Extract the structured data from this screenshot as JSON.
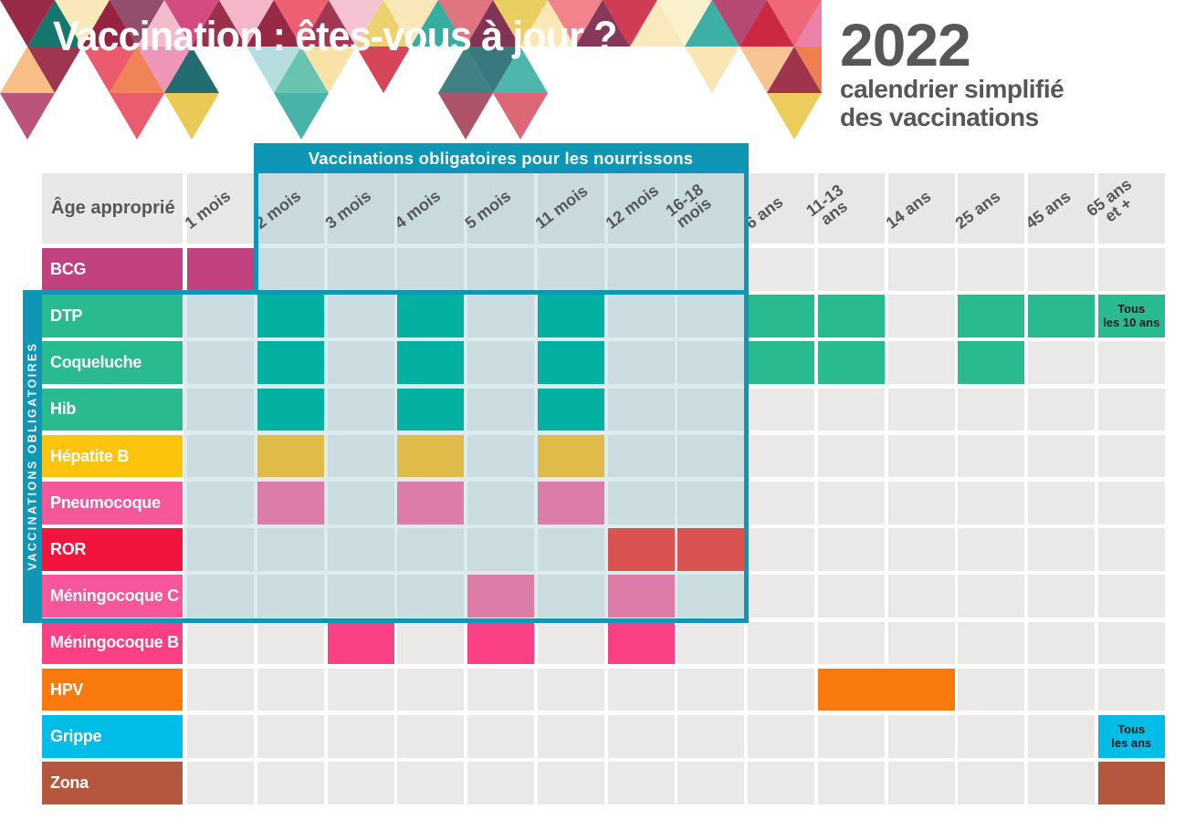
{
  "header": {
    "title": "Vaccination : êtes-vous à jour ?",
    "year": "2022",
    "subtitle_line1": "calendrier simplifié",
    "subtitle_line2": "des vaccinations"
  },
  "mosaic": {
    "palette": [
      "#e8384f",
      "#c9243f",
      "#94203d",
      "#d64456",
      "#f0626e",
      "#d2457c",
      "#ec7fa8",
      "#f3b2c5",
      "#b03b68",
      "#7d2c50",
      "#ef7b4d",
      "#f0925c",
      "#f6b97e",
      "#f9e2a8",
      "#fbeec4",
      "#2aa79b",
      "#13756d",
      "#0b5c63",
      "#66c3ae",
      "#b7e0d1",
      "#e8c547",
      "#9fd4d6"
    ]
  },
  "table": {
    "banner_label": "Vaccinations obligatoires pour les nourrissons",
    "sidebar_label": "VACCINATIONS OBLIGATOIRES",
    "corner_label": "Âge approprié",
    "columns": [
      "1 mois",
      "2 mois",
      "3 mois",
      "4 mois",
      "5 mois",
      "11 mois",
      "12 mois",
      "16-18\nmois",
      "6 ans",
      "11-13\nans",
      "14 ans",
      "25 ans",
      "45 ans",
      "65 ans\net +"
    ],
    "colors": {
      "box_teal": "#0e96b4",
      "cell_gray": "#eae9e7",
      "cell_tinted": "#cbdce1",
      "header_gray": "#e8e7e5",
      "header_tinted": "#c8dade",
      "gap_tint": "#dcebee",
      "fill_green": "#2aba8f",
      "fill_teal_in_box": "#04b0a2",
      "fill_gold_in_box": "#dfbb4a",
      "fill_pink_in_box": "#dc7ca9",
      "fill_red_in_box": "#db5350"
    },
    "box_rows_first": 1,
    "box_rows_last": 7,
    "box_cols_first": 1,
    "box_cols_last": 7,
    "rows": [
      {
        "label": "BCG",
        "label_color": "#c2417f",
        "cells": [
          {
            "col": 0,
            "color": "#c2417f"
          }
        ]
      },
      {
        "label": "DTP",
        "label_color": "#2aba8f",
        "cells": [
          {
            "col": 1,
            "color": "#04b0a2"
          },
          {
            "col": 3,
            "color": "#04b0a2"
          },
          {
            "col": 5,
            "color": "#04b0a2"
          },
          {
            "col": 8,
            "color": "#2aba8f"
          },
          {
            "col": 9,
            "color": "#2aba8f"
          },
          {
            "col": 11,
            "color": "#2aba8f"
          },
          {
            "col": 12,
            "color": "#2aba8f"
          },
          {
            "col": 13,
            "color": "#2aba8f",
            "note": "Tous\nles 10 ans"
          }
        ]
      },
      {
        "label": "Coqueluche",
        "label_color": "#2aba8f",
        "cells": [
          {
            "col": 1,
            "color": "#04b0a2"
          },
          {
            "col": 3,
            "color": "#04b0a2"
          },
          {
            "col": 5,
            "color": "#04b0a2"
          },
          {
            "col": 8,
            "color": "#2aba8f"
          },
          {
            "col": 9,
            "color": "#2aba8f"
          },
          {
            "col": 11,
            "color": "#2aba8f"
          }
        ]
      },
      {
        "label": "Hib",
        "label_color": "#2aba8f",
        "cells": [
          {
            "col": 1,
            "color": "#04b0a2"
          },
          {
            "col": 3,
            "color": "#04b0a2"
          },
          {
            "col": 5,
            "color": "#04b0a2"
          }
        ]
      },
      {
        "label": "Hépatite B",
        "label_color": "#fcc40c",
        "cells": [
          {
            "col": 1,
            "color": "#dfbb4a"
          },
          {
            "col": 3,
            "color": "#dfbb4a"
          },
          {
            "col": 5,
            "color": "#dfbb4a"
          }
        ]
      },
      {
        "label": "Pneumocoque",
        "label_color": "#f8569b",
        "cells": [
          {
            "col": 1,
            "color": "#dc7ca9"
          },
          {
            "col": 3,
            "color": "#dc7ca9"
          },
          {
            "col": 5,
            "color": "#dc7ca9"
          }
        ]
      },
      {
        "label": "ROR",
        "label_color": "#f2143c",
        "cells": [
          {
            "col": 6,
            "color": "#db5350"
          },
          {
            "col": 7,
            "color": "#db5350"
          }
        ]
      },
      {
        "label": "Méningocoque C",
        "label_color": "#f8569b",
        "cells": [
          {
            "col": 4,
            "color": "#dc7ca9"
          },
          {
            "col": 6,
            "color": "#dc7ca9"
          }
        ]
      },
      {
        "label": "Méningocoque B",
        "label_color": "#fc4086",
        "cells": [
          {
            "col": 2,
            "color": "#fc4086"
          },
          {
            "col": 4,
            "color": "#fc4086"
          },
          {
            "col": 6,
            "color": "#fc4086"
          }
        ]
      },
      {
        "label": "HPV",
        "label_color": "#fa7a0e",
        "cells": [
          {
            "col": 9,
            "colspan": 2,
            "color": "#fa7a0e"
          }
        ]
      },
      {
        "label": "Grippe",
        "label_color": "#00bde8",
        "cells": [
          {
            "col": 13,
            "color": "#00bde8",
            "note": "Tous\nles ans"
          }
        ]
      },
      {
        "label": "Zona",
        "label_color": "#b4573e",
        "cells": [
          {
            "col": 13,
            "color": "#b4573e"
          }
        ]
      }
    ]
  },
  "chart_data": {
    "type": "table",
    "title": "Vaccination : êtes-vous à jour ? — 2022 calendrier simplifié des vaccinations",
    "columns": [
      "1 mois",
      "2 mois",
      "3 mois",
      "4 mois",
      "5 mois",
      "11 mois",
      "12 mois",
      "16-18 mois",
      "6 ans",
      "11-13 ans",
      "14 ans",
      "25 ans",
      "45 ans",
      "65 ans et +"
    ],
    "rows": [
      {
        "vaccine": "BCG",
        "doses": [
          "1 mois"
        ],
        "dans_bande_obligatoire": false
      },
      {
        "vaccine": "DTP",
        "doses": [
          "2 mois",
          "4 mois",
          "11 mois",
          "6 ans",
          "11-13 ans",
          "25 ans",
          "45 ans",
          "65 ans et +"
        ],
        "note_65_ans": "Tous les 10 ans",
        "dans_bande_obligatoire": true
      },
      {
        "vaccine": "Coqueluche",
        "doses": [
          "2 mois",
          "4 mois",
          "11 mois",
          "6 ans",
          "11-13 ans",
          "25 ans"
        ],
        "dans_bande_obligatoire": true
      },
      {
        "vaccine": "Hib",
        "doses": [
          "2 mois",
          "4 mois",
          "11 mois"
        ],
        "dans_bande_obligatoire": true
      },
      {
        "vaccine": "Hépatite B",
        "doses": [
          "2 mois",
          "4 mois",
          "11 mois"
        ],
        "dans_bande_obligatoire": true
      },
      {
        "vaccine": "Pneumocoque",
        "doses": [
          "2 mois",
          "4 mois",
          "11 mois"
        ],
        "dans_bande_obligatoire": true
      },
      {
        "vaccine": "ROR",
        "doses": [
          "12 mois",
          "16-18 mois"
        ],
        "dans_bande_obligatoire": true
      },
      {
        "vaccine": "Méningocoque C",
        "doses": [
          "5 mois",
          "12 mois"
        ],
        "dans_bande_obligatoire": true
      },
      {
        "vaccine": "Méningocoque B",
        "doses": [
          "3 mois",
          "5 mois",
          "12 mois"
        ],
        "dans_bande_obligatoire": false
      },
      {
        "vaccine": "HPV",
        "doses": [
          "11-13 ans",
          "14 ans"
        ],
        "dans_bande_obligatoire": false
      },
      {
        "vaccine": "Grippe",
        "doses": [
          "65 ans et +"
        ],
        "note_65_ans": "Tous les ans",
        "dans_bande_obligatoire": false
      },
      {
        "vaccine": "Zona",
        "doses": [
          "65 ans et +"
        ],
        "dans_bande_obligatoire": false
      }
    ],
    "legend": "Zone bleutée encadrée : Vaccinations obligatoires pour les nourrissons (2 mois à 16-18 mois) ; bande verticale : VACCINATIONS OBLIGATOIRES (lignes DTP à Méningocoque C)"
  }
}
